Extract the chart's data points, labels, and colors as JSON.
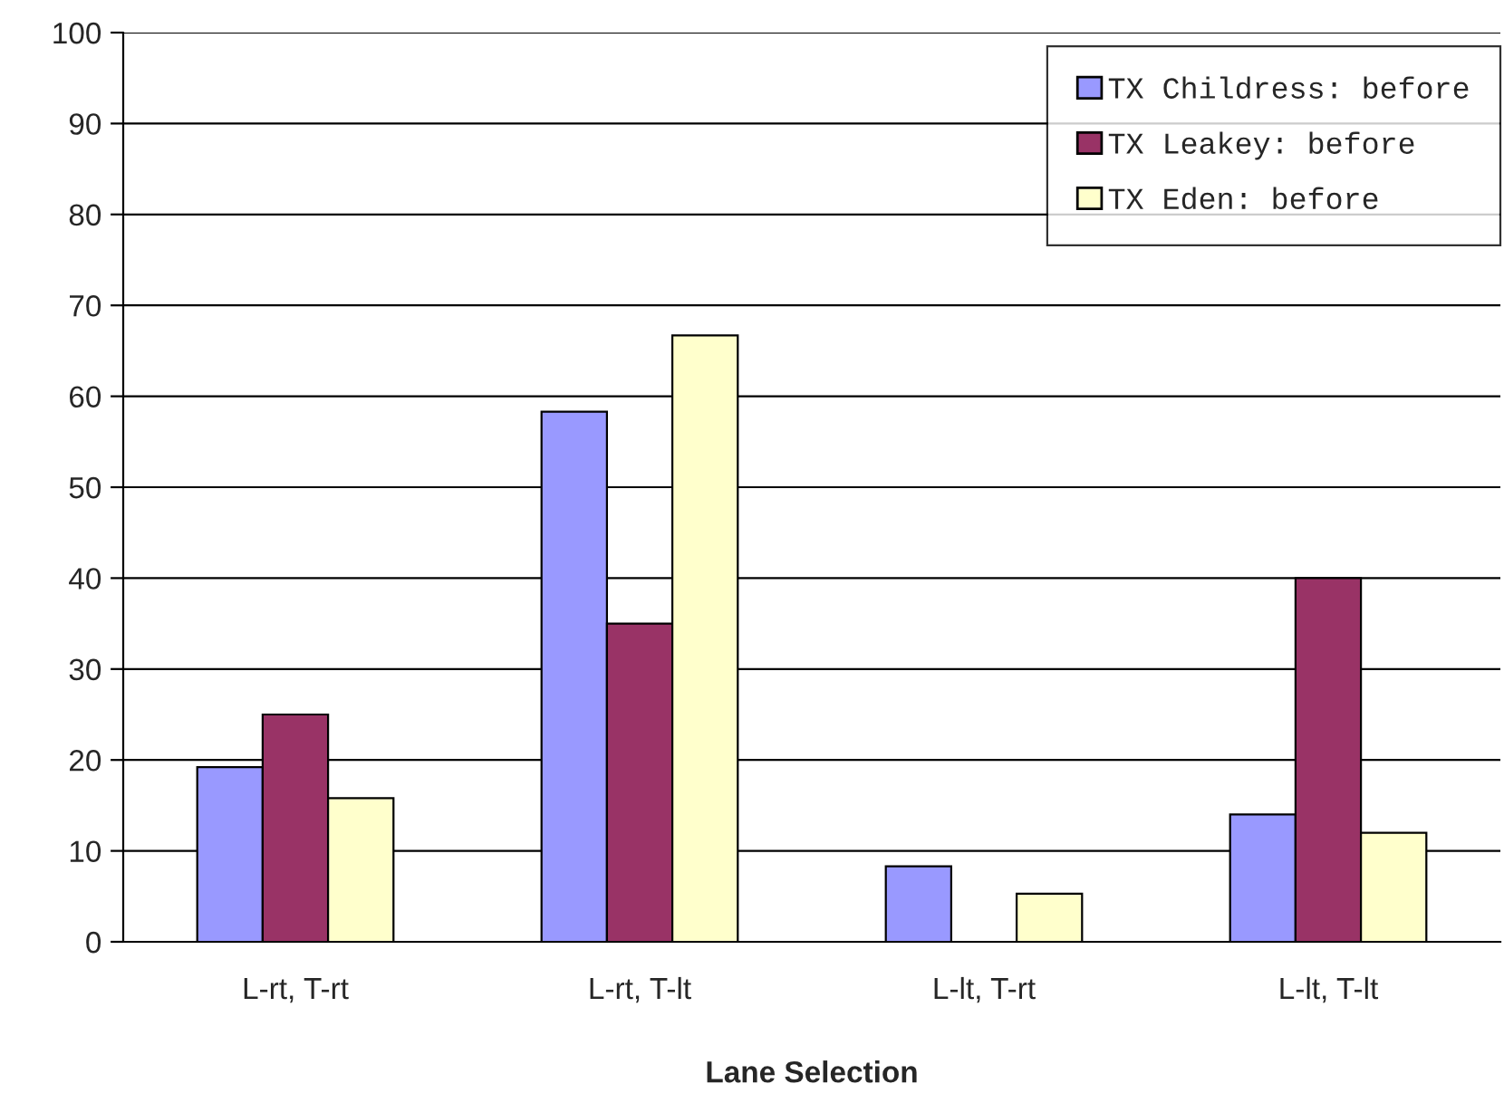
{
  "chart_data": {
    "type": "bar",
    "xlabel": "Lane Selection",
    "categories": [
      "L-rt, T-rt",
      "L-rt, T-lt",
      "L-lt, T-rt",
      "L-lt, T-lt"
    ],
    "series": [
      {
        "name": "TX Childress: before",
        "color": "#9999ff",
        "values": [
          19.2,
          58.3,
          8.3,
          14
        ]
      },
      {
        "name": "TX Leakey: before",
        "color": "#993366",
        "values": [
          25,
          35,
          null,
          40
        ]
      },
      {
        "name": "TX Eden: before",
        "color": "#ffffcc",
        "values": [
          15.8,
          66.7,
          5.3,
          12
        ]
      }
    ],
    "ylim": [
      0,
      100
    ],
    "yticks": [
      0,
      10,
      20,
      30,
      40,
      50,
      60,
      70,
      80,
      90,
      100
    ],
    "grid": "y",
    "legend": "top right"
  }
}
